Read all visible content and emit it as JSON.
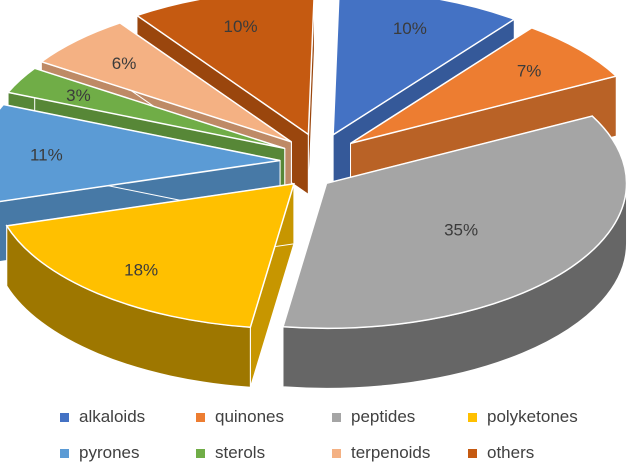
{
  "chart_data": {
    "type": "pie",
    "variant": "3d-exploded",
    "categories": [
      "alkaloids",
      "quinones",
      "peptides",
      "polyketones",
      "pyrones",
      "sterols",
      "terpenoids",
      "others"
    ],
    "values": [
      10,
      7,
      35,
      18,
      11,
      3,
      6,
      10
    ],
    "labels": [
      "10%",
      "7%",
      "35%",
      "18%",
      "11%",
      "3%",
      "6%",
      "10%"
    ],
    "colors": [
      "#4472C4",
      "#ED7D31",
      "#A5A5A5",
      "#FFC000",
      "#5B9BD5",
      "#70AD47",
      "#F4B183",
      "#C55A11"
    ],
    "legend": {
      "position": "bottom",
      "entries": [
        "alkaloids",
        "quinones",
        "peptides",
        "polyketones",
        "pyrones",
        "sterols",
        "terpenoids",
        "others"
      ]
    },
    "title": ""
  }
}
